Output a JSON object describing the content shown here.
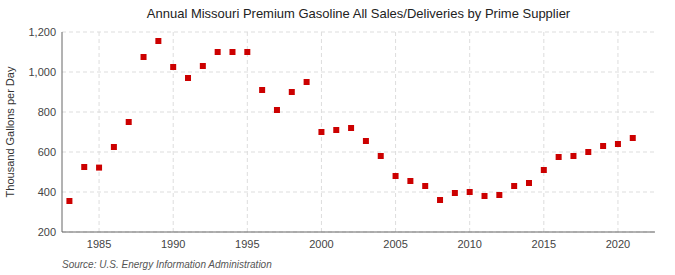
{
  "chart_data": {
    "type": "scatter",
    "title": "Annual Missouri Premium Gasoline All Sales/Deliveries by Prime Supplier",
    "ylabel": "Thousand Gallons per Day",
    "annotation": "Source: U.S. Energy Information Administration",
    "x": [
      1983,
      1984,
      1985,
      1986,
      1987,
      1988,
      1989,
      1990,
      1991,
      1992,
      1993,
      1994,
      1995,
      1996,
      1997,
      1998,
      1999,
      2000,
      2001,
      2002,
      2003,
      2004,
      2005,
      2006,
      2007,
      2008,
      2009,
      2010,
      2011,
      2012,
      2013,
      2014,
      2015,
      2016,
      2017,
      2018,
      2019,
      2020,
      2021
    ],
    "values": [
      355,
      525,
      522,
      625,
      750,
      1075,
      1155,
      1025,
      970,
      1030,
      1100,
      1100,
      1100,
      910,
      810,
      900,
      950,
      700,
      710,
      720,
      655,
      580,
      480,
      455,
      430,
      360,
      395,
      400,
      380,
      385,
      430,
      445,
      510,
      575,
      580,
      600,
      630,
      640,
      670
    ],
    "color": "#cc0000",
    "marker": "square",
    "xlim": [
      1982.5,
      2022.5
    ],
    "xticks": [
      1985,
      1990,
      1995,
      2000,
      2005,
      2010,
      2015,
      2020
    ],
    "ylim": [
      200,
      1200
    ],
    "yticks": [
      200,
      400,
      600,
      800,
      {
        "value": 1000,
        "label": "1,000"
      },
      {
        "value": 1200,
        "label": "1,200"
      }
    ],
    "grid": true
  }
}
